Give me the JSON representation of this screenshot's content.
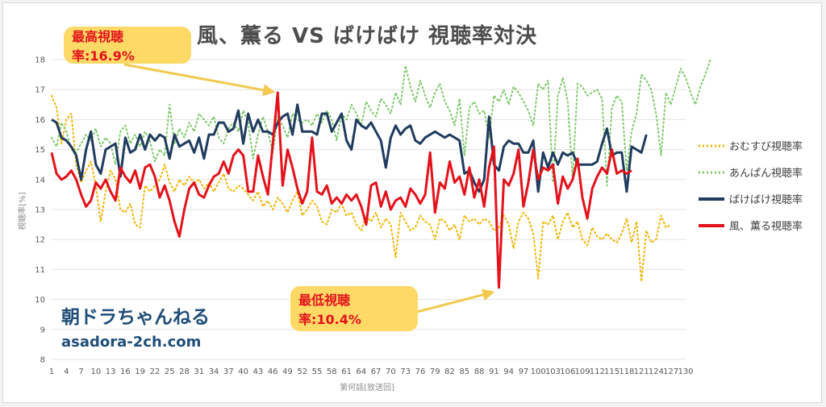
{
  "chart_data": {
    "type": "line",
    "title": "風、薫る VS ばけばけ 視聴率対決",
    "xlabel": "第何話[放送回]",
    "ylabel": "視聴率[%]",
    "ylim": [
      8,
      18
    ],
    "xlim": [
      1,
      130
    ],
    "y_ticks": [
      8,
      9,
      10,
      11,
      12,
      13,
      14,
      15,
      16,
      17,
      18
    ],
    "x_ticks": [
      1,
      4,
      7,
      10,
      13,
      16,
      19,
      22,
      25,
      28,
      31,
      34,
      37,
      40,
      43,
      46,
      49,
      52,
      55,
      58,
      61,
      64,
      67,
      70,
      73,
      76,
      79,
      82,
      85,
      88,
      91,
      94,
      97,
      100,
      103,
      106,
      109,
      112,
      115,
      118,
      121,
      124,
      127,
      130
    ],
    "grid": true,
    "legend_position": "right",
    "series": [
      {
        "name": "おむすび視聴率",
        "color": "#f0b400",
        "dash": "dotted",
        "values": [
          16.8,
          16.4,
          15.2,
          16.0,
          16.2,
          14.5,
          13.9,
          14.3,
          14.6,
          13.8,
          12.6,
          13.6,
          14.3,
          14.0,
          13.0,
          12.9,
          13.2,
          12.5,
          12.4,
          13.8,
          13.6,
          13.8,
          14.0,
          14.5,
          13.9,
          13.6,
          14.0,
          13.8,
          14.1,
          13.9,
          14.0,
          13.7,
          13.9,
          13.6,
          13.9,
          14.2,
          13.7,
          13.6,
          13.8,
          13.7,
          13.5,
          13.3,
          13.6,
          13.1,
          13.3,
          13.0,
          13.4,
          13.2,
          12.9,
          13.3,
          13.6,
          12.8,
          13.0,
          13.3,
          13.1,
          12.6,
          12.5,
          13.0,
          12.9,
          13.2,
          12.8,
          12.9,
          12.5,
          12.3,
          12.8,
          12.6,
          12.9,
          12.4,
          12.7,
          12.5,
          11.4,
          12.9,
          12.6,
          12.3,
          12.4,
          12.8,
          12.6,
          12.5,
          12.0,
          12.7,
          12.6,
          12.3,
          12.5,
          12.0,
          12.8,
          12.6,
          12.7,
          12.5,
          12.7,
          12.6,
          12.3,
          12.4,
          12.8,
          12.5,
          11.7,
          12.6,
          12.9,
          12.7,
          12.2,
          10.7,
          12.6,
          12.5,
          12.8,
          12.0,
          12.6,
          12.9,
          12.4,
          12.6,
          12.0,
          11.8,
          12.4,
          12.1,
          12.0,
          12.2,
          12.0,
          11.9,
          12.2,
          12.7,
          11.9,
          12.6,
          10.6,
          12.3,
          11.9,
          12.0,
          12.8,
          12.4,
          12.5
        ],
        "range": [
          1,
          124
        ]
      },
      {
        "name": "あんぱん視聴率",
        "color": "#7dc96a",
        "dash": "dotted",
        "values": [
          15.4,
          15.1,
          15.9,
          15.6,
          15.0,
          14.9,
          15.2,
          15.5,
          15.3,
          15.7,
          15.1,
          15.4,
          15.2,
          14.5,
          15.6,
          15.8,
          15.2,
          15.5,
          15.1,
          15.6,
          15.3,
          14.6,
          15.0,
          14.8,
          16.5,
          15.2,
          15.7,
          15.4,
          15.9,
          15.6,
          16.2,
          16.0,
          15.8,
          16.1,
          15.4,
          15.2,
          15.7,
          15.9,
          15.6,
          16.3,
          15.9,
          14.7,
          15.5,
          16.1,
          15.6,
          14.9,
          16.1,
          15.8,
          15.4,
          16.2,
          16.0,
          15.9,
          16.0,
          15.8,
          16.2,
          15.9,
          16.3,
          16.0,
          15.3,
          16.2,
          16.0,
          16.5,
          16.2,
          15.8,
          16.6,
          16.3,
          16.1,
          16.7,
          16.5,
          16.2,
          16.9,
          16.5,
          17.8,
          17.1,
          16.6,
          17.3,
          16.8,
          16.4,
          16.9,
          17.2,
          16.6,
          16.3,
          15.8,
          16.7,
          14.8,
          16.4,
          16.6,
          16.2,
          16.3,
          15.4,
          16.8,
          16.6,
          17.0,
          16.5,
          17.1,
          16.9,
          16.6,
          16.3,
          15.8,
          17.2,
          17.0,
          17.3,
          13.9,
          16.8,
          17.4,
          16.6,
          14.0,
          17.2,
          17.1,
          16.8,
          16.9,
          17.0,
          16.7,
          13.8,
          16.4,
          16.8,
          16.6,
          14.3,
          15.6,
          16.2,
          17.5,
          17.3,
          17.0,
          16.2,
          14.8,
          16.9,
          16.5,
          17.1,
          17.7,
          17.4,
          16.9,
          16.5,
          17.1,
          17.5,
          18.0
        ],
        "range": [
          1,
          130
        ]
      },
      {
        "name": "ばけばけ視聴率",
        "color": "#1f3b5e",
        "dash": "solid",
        "values": [
          16.0,
          15.9,
          15.4,
          15.3,
          15.1,
          14.8,
          14.0,
          15.0,
          15.6,
          14.5,
          14.2,
          15.0,
          15.1,
          15.2,
          14.1,
          15.4,
          14.9,
          15.0,
          15.5,
          15.0,
          15.5,
          15.3,
          15.5,
          15.4,
          14.7,
          15.5,
          15.1,
          15.2,
          15.3,
          14.9,
          15.4,
          14.7,
          15.5,
          15.5,
          15.9,
          15.9,
          15.6,
          15.7,
          16.3,
          15.2,
          16.2,
          15.6,
          16.0,
          15.6,
          15.6,
          15.5,
          15.9,
          16.1,
          16.2,
          15.5,
          16.5,
          15.6,
          15.6,
          15.6,
          15.5,
          16.2,
          16.2,
          15.6,
          15.9,
          16.2,
          15.3,
          15.0,
          16.0,
          15.8,
          15.7,
          15.9,
          15.6,
          15.3,
          14.4,
          15.4,
          15.8,
          15.5,
          15.7,
          15.8,
          15.3,
          15.2,
          15.4,
          15.5,
          15.6,
          15.5,
          15.4,
          15.5,
          15.4,
          15.3,
          14.2,
          14.3,
          13.9,
          13.6,
          14.0,
          16.1,
          14.5,
          14.3,
          15.1,
          15.3,
          15.2,
          15.2,
          14.9,
          14.9,
          15.3,
          13.6,
          14.9,
          14.4,
          14.9,
          14.5,
          14.9,
          14.8,
          14.9,
          14.5,
          14.5,
          14.5,
          14.5,
          14.6,
          15.2,
          15.7,
          14.8,
          14.9,
          14.9,
          13.6,
          15.1,
          15.0,
          14.9,
          15.5
        ],
        "range": [
          1,
          124
        ]
      },
      {
        "name": "風、薫る視聴率",
        "color": "#e3121b",
        "dash": "solid",
        "values": [
          14.9,
          14.2,
          14.0,
          14.1,
          14.3,
          14.0,
          13.5,
          13.1,
          13.3,
          13.9,
          13.7,
          14.0,
          13.6,
          13.3,
          14.4,
          14.1,
          13.9,
          14.3,
          13.7,
          14.4,
          14.5,
          14.1,
          13.4,
          13.8,
          13.3,
          12.6,
          12.1,
          13.0,
          13.7,
          13.9,
          13.5,
          13.4,
          13.8,
          14.1,
          14.2,
          14.6,
          14.2,
          14.8,
          15.0,
          14.8,
          13.6,
          13.6,
          14.8,
          14.1,
          13.5,
          15.2,
          16.9,
          13.8,
          15.0,
          14.4,
          13.7,
          13.2,
          13.6,
          15.4,
          13.6,
          13.5,
          13.8,
          13.2,
          13.4,
          13.2,
          13.5,
          13.3,
          13.5,
          13.1,
          12.5,
          13.8,
          13.9,
          13.1,
          13.6,
          13.0,
          13.3,
          13.4,
          13.1,
          13.7,
          13.5,
          13.2,
          13.5,
          14.9,
          12.9,
          13.9,
          13.7,
          14.6,
          13.9,
          14.1,
          13.5,
          14.4,
          13.4,
          14.0,
          13.1,
          14.4,
          15.1,
          10.4,
          14.0,
          13.8,
          14.2,
          15.0,
          13.1,
          13.9,
          15.0,
          14.0,
          14.4,
          14.3,
          14.5,
          13.2,
          14.1,
          13.7,
          14.0,
          14.7,
          13.4,
          12.7,
          13.7,
          14.1,
          14.4,
          14.2,
          15.0,
          14.2,
          14.3,
          14.2,
          14.3
        ],
        "range": [
          1,
          120
        ]
      }
    ]
  },
  "annotations": {
    "high": "最高視聴率:16.9%",
    "low": "最低視聴率:10.4%"
  },
  "watermark": {
    "name": "朝ドラちゃんねる",
    "url": "asadora-2ch.com"
  },
  "legend": [
    {
      "label": "おむすび視聴率"
    },
    {
      "label": "あんぱん視聴率"
    },
    {
      "label": "ばけばけ視聴率"
    },
    {
      "label": "風、薫る視聴率"
    }
  ]
}
